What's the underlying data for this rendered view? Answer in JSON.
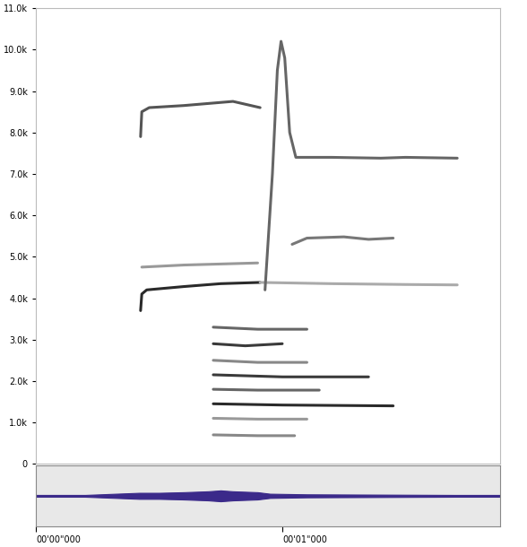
{
  "chart_data": [
    {
      "type": "line",
      "xlim": [
        0,
        1.884
      ],
      "ylim": [
        0,
        11000
      ],
      "yticks": [
        0,
        {
          "value": 1000,
          "label": "1.0k"
        },
        {
          "value": 2000,
          "label": "2.0k"
        },
        {
          "value": 3000,
          "label": "3.0k"
        },
        {
          "value": 4000,
          "label": "4.0k"
        },
        {
          "value": 5000,
          "label": "5.0k"
        },
        {
          "value": 6000,
          "label": "6.0k"
        },
        {
          "value": 7000,
          "label": "7.0k"
        },
        {
          "value": 8000,
          "label": "8.0k"
        },
        {
          "value": 9000,
          "label": "9.0k"
        },
        {
          "value": 10000,
          "label": "10.0k"
        },
        {
          "value": 11000,
          "label": "11.0k"
        }
      ],
      "tick_labels": "y",
      "series": [
        {
          "color": "#2a2a2a",
          "x": [
            0.425,
            0.43,
            0.45,
            0.6,
            0.75,
            0.91
          ],
          "values": [
            3700,
            4100,
            4200,
            4280,
            4350,
            4380
          ]
        },
        {
          "color": "#555555",
          "x": [
            0.425,
            0.43,
            0.46,
            0.6,
            0.8,
            0.91
          ],
          "values": [
            7900,
            8500,
            8600,
            8650,
            8750,
            8600
          ]
        },
        {
          "color": "#999999",
          "x": [
            0.43,
            0.6,
            0.9
          ],
          "values": [
            4750,
            4800,
            4850
          ]
        },
        {
          "color": "#aaaaaa",
          "x": [
            0.91,
            1.2,
            1.5,
            1.71
          ],
          "values": [
            4380,
            4350,
            4330,
            4320
          ]
        },
        {
          "color": "#666666",
          "x": [
            0.93,
            0.96,
            0.98,
            0.995,
            1.01,
            1.03,
            1.055,
            1.2,
            1.4,
            1.5,
            1.71
          ],
          "values": [
            4200,
            7000,
            9500,
            10200,
            9800,
            8000,
            7400,
            7400,
            7380,
            7400,
            7380
          ]
        },
        {
          "color": "#777777",
          "x": [
            1.04,
            1.1,
            1.25,
            1.35,
            1.45
          ],
          "values": [
            5300,
            5450,
            5480,
            5420,
            5450
          ]
        },
        {
          "color": "#666666",
          "x": [
            0.72,
            0.9,
            1.1
          ],
          "values": [
            3300,
            3250,
            3250
          ]
        },
        {
          "color": "#3a3a3a",
          "x": [
            0.72,
            0.85,
            1.0
          ],
          "values": [
            2900,
            2850,
            2900
          ]
        },
        {
          "color": "#888888",
          "x": [
            0.72,
            0.9,
            1.1
          ],
          "values": [
            2500,
            2450,
            2450
          ]
        },
        {
          "color": "#3a3a3a",
          "x": [
            0.72,
            1.0,
            1.35
          ],
          "values": [
            2150,
            2100,
            2100
          ]
        },
        {
          "color": "#666666",
          "x": [
            0.72,
            0.9,
            1.15
          ],
          "values": [
            1800,
            1780,
            1780
          ]
        },
        {
          "color": "#2a2a2a",
          "x": [
            0.72,
            1.0,
            1.45
          ],
          "values": [
            1450,
            1420,
            1400
          ]
        },
        {
          "color": "#999999",
          "x": [
            0.72,
            0.9,
            1.1
          ],
          "values": [
            1100,
            1080,
            1080
          ]
        },
        {
          "color": "#888888",
          "x": [
            0.72,
            0.9,
            1.05
          ],
          "values": [
            700,
            680,
            680
          ]
        }
      ]
    },
    {
      "type": "area",
      "xlim": [
        0,
        1.884
      ],
      "ylim": [
        -1,
        1
      ],
      "xticks": [
        {
          "value": 0,
          "label": "00'00\"000"
        },
        {
          "value": 1,
          "label": "00'01\"000"
        }
      ],
      "tick_labels": "x",
      "color": "#3b2a8a",
      "x": [
        0,
        0.2,
        0.42,
        0.5,
        0.6,
        0.7,
        0.75,
        0.8,
        0.9,
        0.95,
        1.1,
        1.4,
        1.7,
        1.884
      ],
      "values": [
        0.03,
        0.03,
        0.1,
        0.1,
        0.12,
        0.15,
        0.18,
        0.15,
        0.12,
        0.07,
        0.05,
        0.04,
        0.03,
        0.03
      ]
    }
  ]
}
